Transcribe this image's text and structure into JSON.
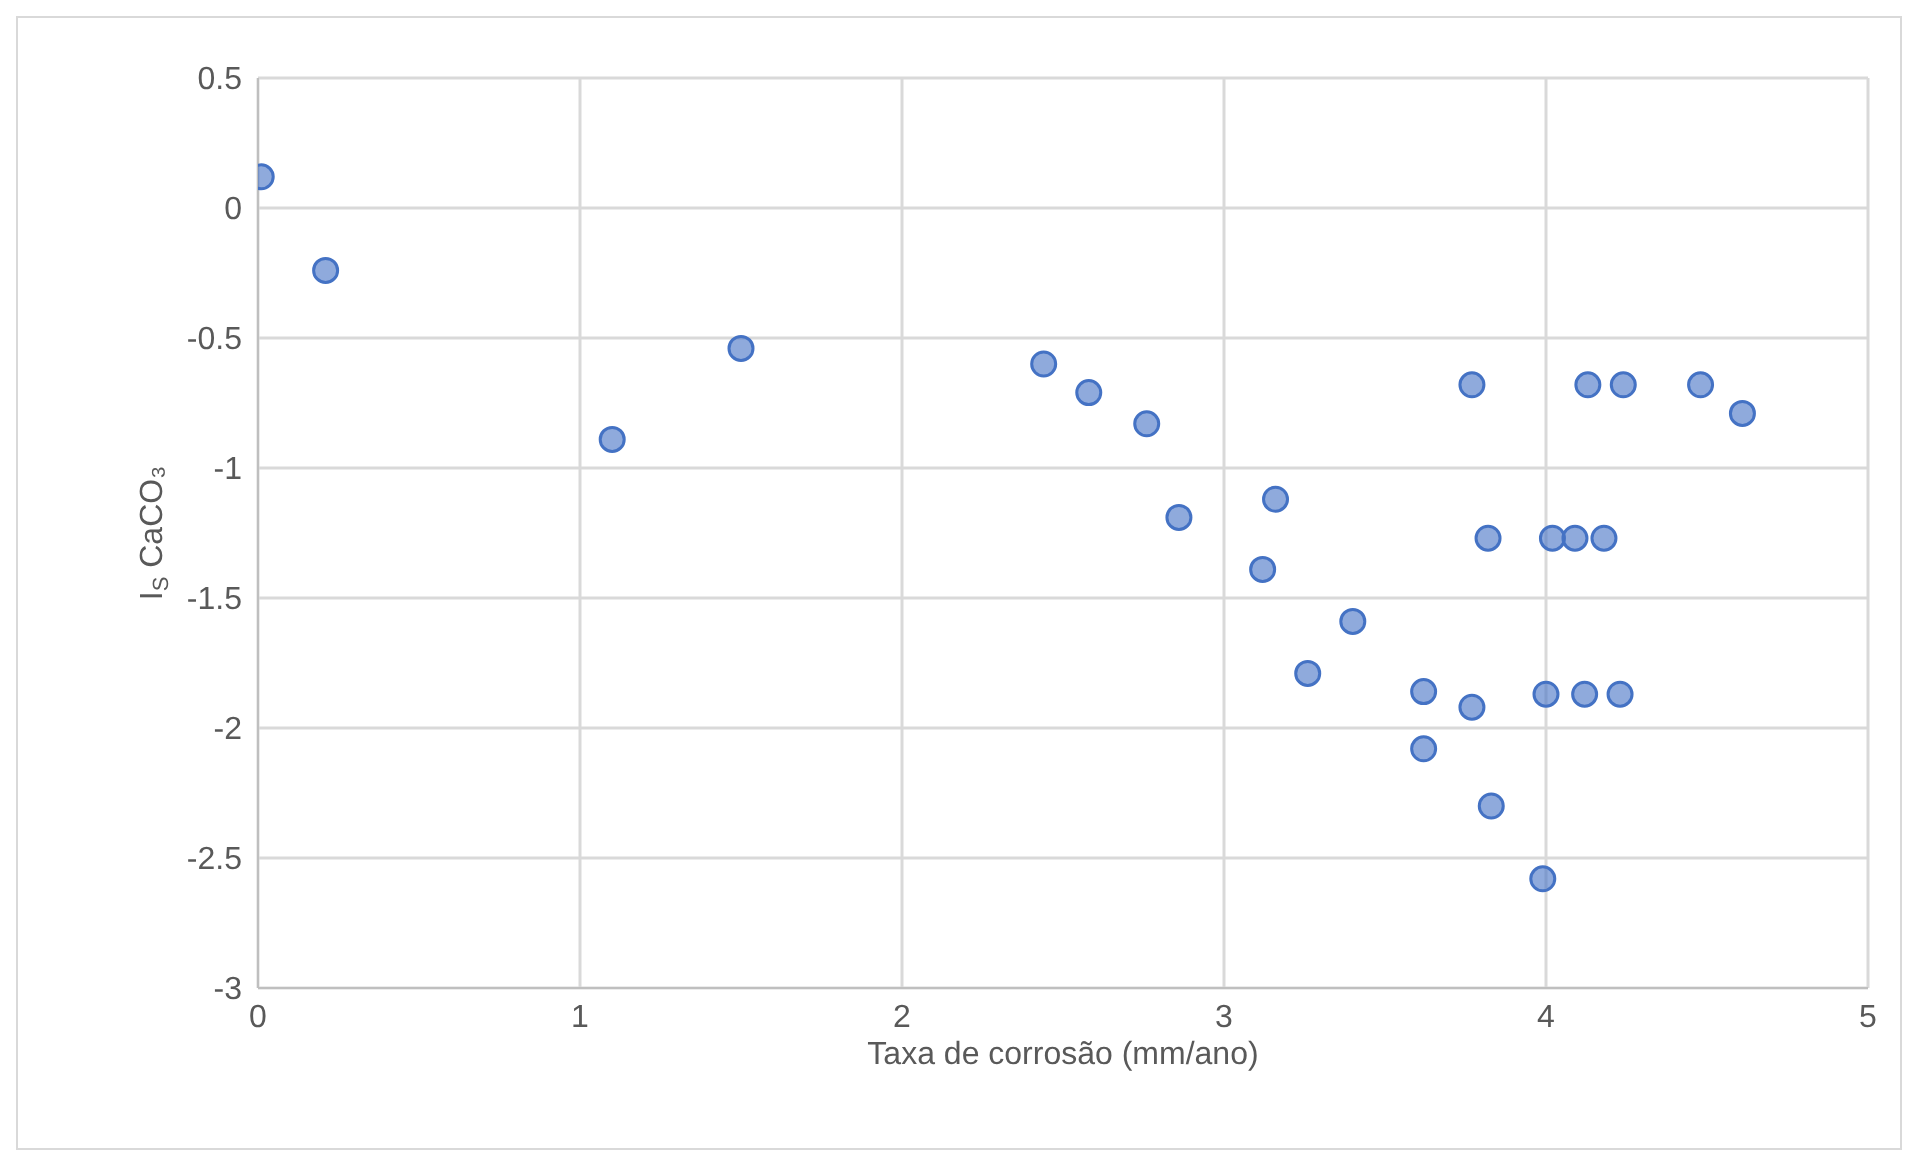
{
  "chart_data": {
    "type": "scatter",
    "xlabel": "Taxa de corrosão (mm/ano)",
    "ylabel": "I$_{S}$ CaCO₃",
    "x": [
      0.01,
      0.21,
      1.1,
      1.5,
      2.44,
      2.58,
      2.76,
      2.86,
      3.16,
      3.12,
      3.4,
      3.26,
      3.62,
      3.62,
      3.77,
      3.83,
      3.77,
      4.13,
      4.24,
      4.48,
      4.61,
      3.82,
      4.02,
      4.09,
      4.18,
      4.0,
      4.12,
      4.23,
      3.99
    ],
    "values": [
      0.12,
      -0.24,
      -0.89,
      -0.54,
      -0.6,
      -0.71,
      -0.83,
      -1.19,
      -1.12,
      -1.39,
      -1.59,
      -1.79,
      -1.86,
      -2.08,
      -1.92,
      -2.3,
      -0.68,
      -0.68,
      -0.68,
      -0.68,
      -0.79,
      -1.27,
      -1.27,
      -1.27,
      -1.27,
      -1.87,
      -1.87,
      -1.87,
      -2.58
    ],
    "color": "#4472c4",
    "marker": "circle",
    "grid": true,
    "xlim": [
      0,
      5
    ],
    "xticks": [
      0,
      1,
      2,
      3,
      4,
      5
    ],
    "ylim": [
      -3,
      0.5
    ],
    "yticks": [
      0.5,
      0,
      -0.5,
      -1,
      -1.5,
      -2,
      -2.5,
      -3
    ]
  }
}
